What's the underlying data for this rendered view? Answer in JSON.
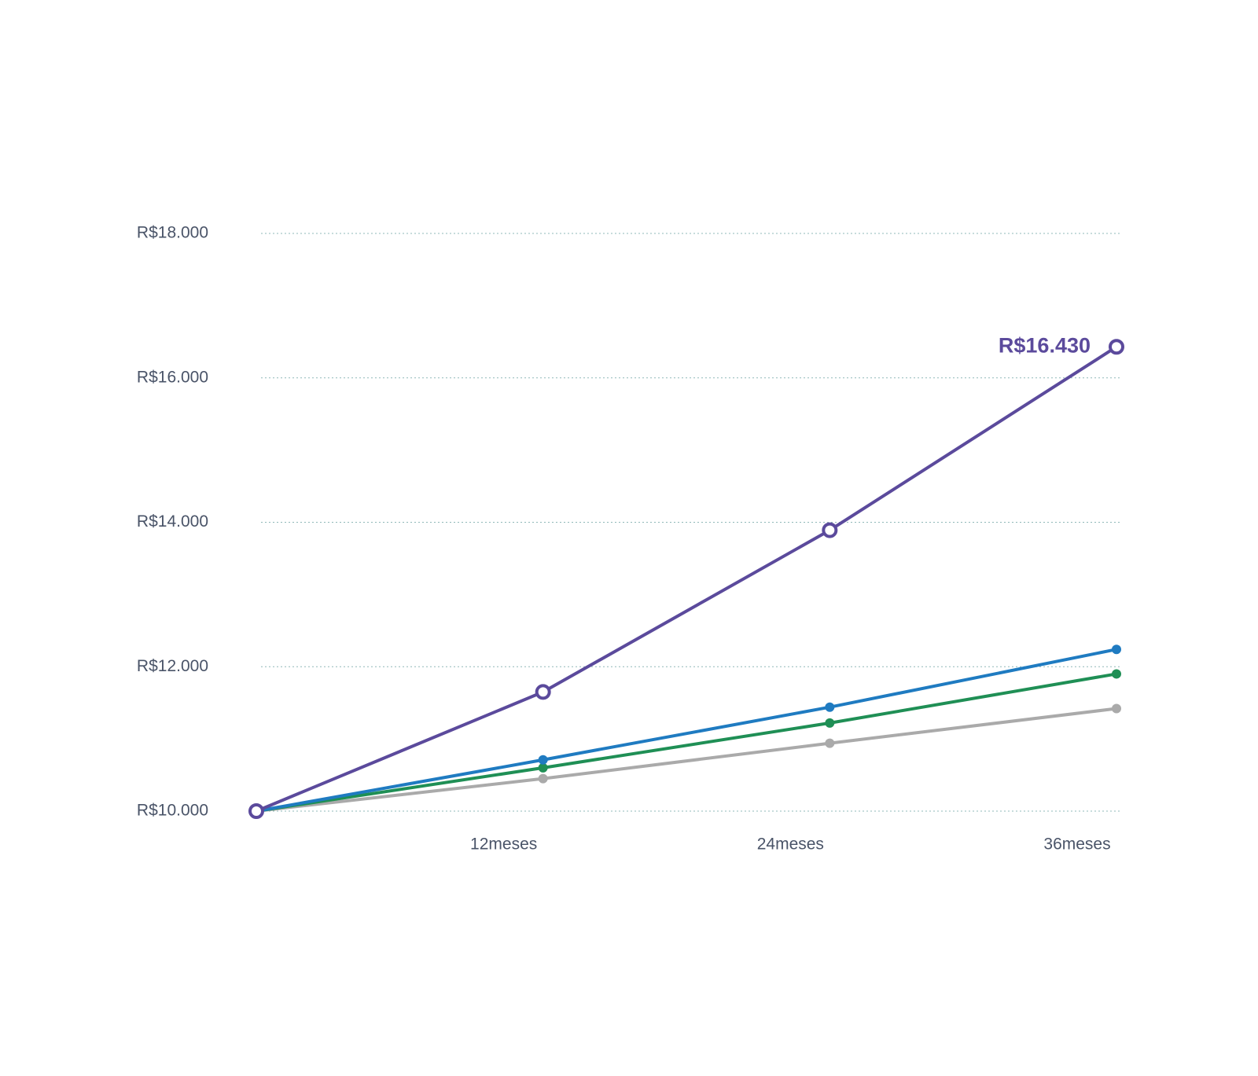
{
  "chart_data": {
    "type": "line",
    "x": [
      0,
      12,
      24,
      36
    ],
    "xlim": [
      0,
      36
    ],
    "xticks": [
      {
        "value": 12,
        "label": "12meses"
      },
      {
        "value": 24,
        "label": "24meses"
      },
      {
        "value": 36,
        "label": "36meses"
      }
    ],
    "ylim": [
      10000,
      18000
    ],
    "yticks": [
      {
        "value": 10000,
        "label": "R$10.000"
      },
      {
        "value": 12000,
        "label": "R$12.000"
      },
      {
        "value": 14000,
        "label": "R$14.000"
      },
      {
        "value": 16000,
        "label": "R$16.000"
      },
      {
        "value": 18000,
        "label": "R$18.000"
      }
    ],
    "grid": true,
    "series": [
      {
        "color": "#5b4a9c",
        "marker": "hollow",
        "values": [
          10000,
          11650,
          13890,
          16430
        ],
        "value_labels": [
          null,
          null,
          null,
          "R$16.430"
        ]
      },
      {
        "color": "#1f7bc1",
        "marker": "dot",
        "values": [
          10000,
          10710,
          11440,
          12240
        ]
      },
      {
        "color": "#1f8f55",
        "marker": "dot",
        "values": [
          10000,
          10600,
          11220,
          11900
        ]
      },
      {
        "color": "#aaaaaa",
        "marker": "dot",
        "values": [
          10000,
          10450,
          10940,
          11420
        ]
      }
    ]
  }
}
